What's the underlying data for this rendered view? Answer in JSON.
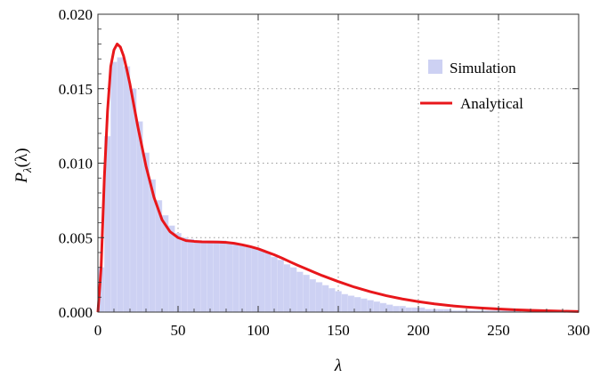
{
  "chart_data": {
    "type": "bar",
    "title": "",
    "xlabel": "λ",
    "ylabel_main": "P",
    "ylabel_sub": "λ",
    "ylabel_arg": "(λ)",
    "xlim": [
      0,
      300
    ],
    "ylim": [
      0,
      0.02
    ],
    "x_ticks": [
      {
        "value": 0,
        "label": "0"
      },
      {
        "value": 50,
        "label": "50"
      },
      {
        "value": 100,
        "label": "100"
      },
      {
        "value": 150,
        "label": "150"
      },
      {
        "value": 200,
        "label": "200"
      },
      {
        "value": 250,
        "label": "250"
      },
      {
        "value": 300,
        "label": "300"
      }
    ],
    "y_ticks": [
      {
        "value": 0,
        "label": "0.000"
      },
      {
        "value": 0.005,
        "label": "0.005"
      },
      {
        "value": 0.01,
        "label": "0.010"
      },
      {
        "value": 0.015,
        "label": "0.015"
      },
      {
        "value": 0.02,
        "label": "0.020"
      }
    ],
    "grid": true,
    "legend_position": "top-right",
    "series": [
      {
        "name": "Simulation",
        "kind": "histogram",
        "color": "#cdd1f3",
        "bin_width": 4,
        "bins_start": [
          0,
          4,
          8,
          12,
          16,
          20,
          24,
          28,
          32,
          36,
          40,
          44,
          48,
          52,
          56,
          60,
          64,
          68,
          72,
          76,
          80,
          84,
          88,
          92,
          96,
          100,
          104,
          108,
          112,
          116,
          120,
          124,
          128,
          132,
          136,
          140,
          144,
          148,
          152,
          156,
          160,
          164,
          168,
          172,
          176,
          180,
          184,
          188,
          192,
          196,
          200,
          204,
          208,
          212,
          216,
          220,
          224,
          228,
          232,
          236,
          240,
          244,
          248,
          252,
          256,
          260,
          264,
          268,
          272,
          276,
          280,
          284,
          288,
          292,
          296
        ],
        "values": [
          0.003,
          0.0118,
          0.0168,
          0.0171,
          0.0165,
          0.015,
          0.0128,
          0.0107,
          0.0089,
          0.0075,
          0.0065,
          0.0058,
          0.0053,
          0.005,
          0.0049,
          0.0048,
          0.0048,
          0.0048,
          0.0048,
          0.0048,
          0.0047,
          0.0046,
          0.0045,
          0.0044,
          0.0043,
          0.0042,
          0.004,
          0.0037,
          0.0035,
          0.0032,
          0.003,
          0.0027,
          0.0025,
          0.0022,
          0.002,
          0.0018,
          0.0016,
          0.0014,
          0.0012,
          0.0011,
          0.001,
          0.0009,
          0.0008,
          0.0007,
          0.0006,
          0.0005,
          0.0004,
          0.0004,
          0.0003,
          0.0003,
          0.0003,
          0.0002,
          0.0002,
          0.0002,
          0.0002,
          0.0001,
          0.0001,
          0.0001,
          0.0001,
          0.0001,
          0.0001,
          0.0001,
          0.0001,
          0.0001,
          0.0001,
          0.0001,
          0.0,
          0.0,
          0.0,
          0.0,
          0.0,
          0.0,
          0.0,
          0.0,
          0.0
        ]
      },
      {
        "name": "Analytical",
        "kind": "line",
        "color": "#e8171b",
        "x": [
          0,
          2,
          4,
          6,
          8,
          10,
          12,
          14,
          16,
          18,
          20,
          25,
          30,
          35,
          40,
          45,
          50,
          55,
          60,
          65,
          70,
          75,
          80,
          85,
          90,
          95,
          100,
          105,
          110,
          115,
          120,
          125,
          130,
          135,
          140,
          150,
          160,
          170,
          180,
          190,
          200,
          210,
          220,
          230,
          240,
          250,
          260,
          270,
          280,
          290,
          300
        ],
        "y": [
          0.0,
          0.003,
          0.009,
          0.0135,
          0.0165,
          0.0176,
          0.018,
          0.0178,
          0.0172,
          0.0163,
          0.0153,
          0.0124,
          0.0098,
          0.0077,
          0.0062,
          0.0054,
          0.005,
          0.0048,
          0.00475,
          0.00472,
          0.00471,
          0.0047,
          0.00468,
          0.00462,
          0.00452,
          0.0044,
          0.00425,
          0.00405,
          0.00385,
          0.00362,
          0.00337,
          0.00313,
          0.0029,
          0.00267,
          0.00245,
          0.00205,
          0.00168,
          0.00137,
          0.0011,
          0.00088,
          0.0007,
          0.00055,
          0.00043,
          0.00034,
          0.00027,
          0.00021,
          0.00016,
          0.00012,
          9e-05,
          6e-05,
          4e-05
        ]
      }
    ]
  }
}
